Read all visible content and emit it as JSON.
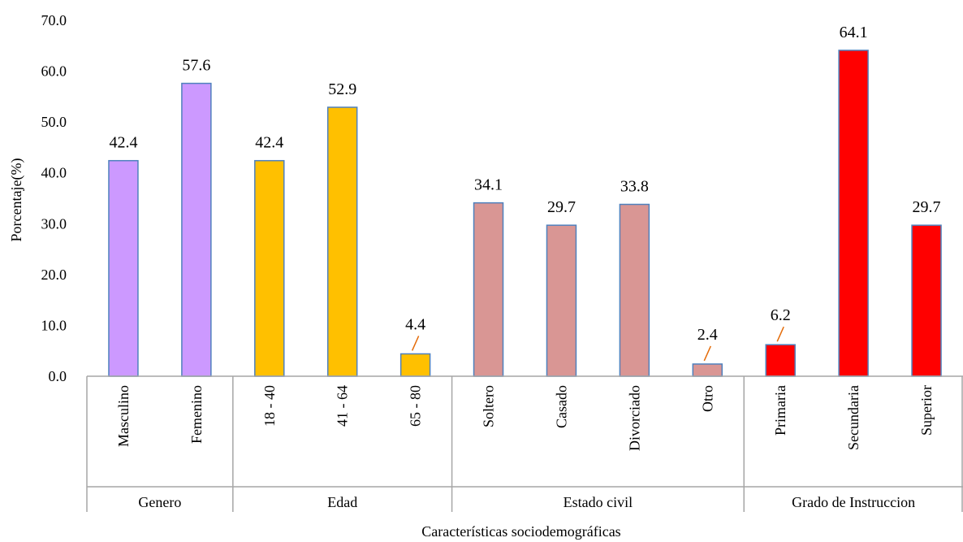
{
  "chart_data": {
    "type": "bar",
    "ylabel": "Porcentaje(%)",
    "xlabel": "Características sociodemográficas",
    "ylim": [
      0,
      70
    ],
    "yticks": [
      "0.0",
      "10.0",
      "20.0",
      "30.0",
      "40.0",
      "50.0",
      "60.0",
      "70.0"
    ],
    "grid": false,
    "groups": [
      {
        "name": "Genero",
        "color": "#cc99ff",
        "categories": [
          "Masculino",
          "Femenino"
        ],
        "values": [
          42.4,
          57.6
        ],
        "labels": [
          "42.4",
          "57.6"
        ]
      },
      {
        "name": "Edad",
        "color": "#ffc000",
        "categories": [
          "18 - 40",
          "41 - 64",
          "65 - 80"
        ],
        "values": [
          42.4,
          52.9,
          4.4
        ],
        "labels": [
          "42.4",
          "52.9",
          "4.4"
        ]
      },
      {
        "name": "Estado  civil",
        "color": "#d99694",
        "categories": [
          "Soltero",
          "Casado",
          "Divorciado",
          "Otro"
        ],
        "values": [
          34.1,
          29.7,
          33.8,
          2.4
        ],
        "labels": [
          "34.1",
          "29.7",
          "33.8",
          "2.4"
        ]
      },
      {
        "name": "Grado de Instruccion",
        "color": "#ff0000",
        "categories": [
          "Primaria",
          "Secundaria",
          "Superior"
        ],
        "values": [
          6.2,
          64.1,
          29.7
        ],
        "labels": [
          "6.2",
          "64.1",
          "29.7"
        ]
      }
    ],
    "bar_border_color": "#4f81bd",
    "leader_line_color": "#e46c0a"
  }
}
